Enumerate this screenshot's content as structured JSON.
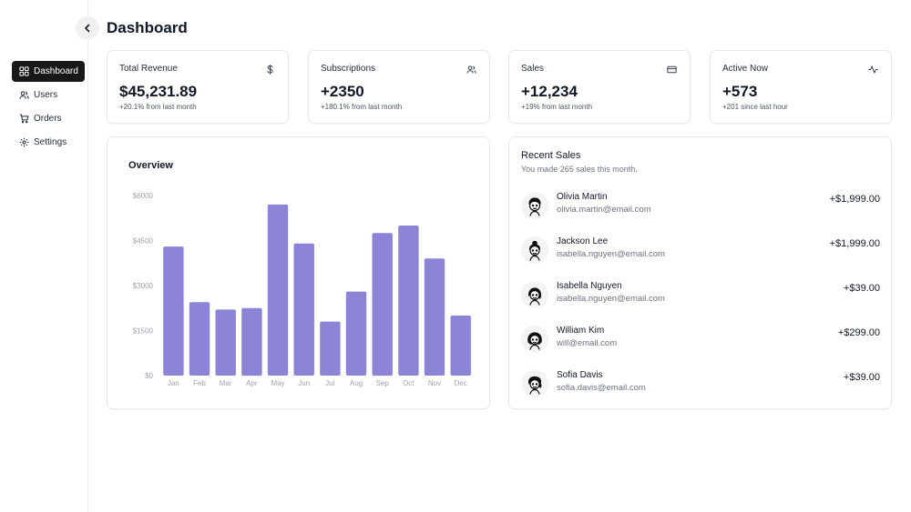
{
  "header": {
    "title": "Dashboard"
  },
  "sidebar": {
    "items": [
      {
        "label": "Dashboard",
        "icon": "dashboard-icon",
        "active": true
      },
      {
        "label": "Users",
        "icon": "users-icon",
        "active": false
      },
      {
        "label": "Orders",
        "icon": "cart-icon",
        "active": false
      },
      {
        "label": "Settings",
        "icon": "gear-icon",
        "active": false
      }
    ]
  },
  "stats": [
    {
      "label": "Total Revenue",
      "value": "$45,231.89",
      "delta": "+20.1% from last month",
      "icon": "dollar-icon"
    },
    {
      "label": "Subscriptions",
      "value": "+2350",
      "delta": "+180.1% from last month",
      "icon": "users-icon"
    },
    {
      "label": "Sales",
      "value": "+12,234",
      "delta": "+19% from last month",
      "icon": "credit-card-icon"
    },
    {
      "label": "Active Now",
      "value": "+573",
      "delta": "+201 since last hour",
      "icon": "activity-icon"
    }
  ],
  "overview": {
    "title": "Overview",
    "chart_data": {
      "type": "bar",
      "categories": [
        "Jan",
        "Feb",
        "Mar",
        "Apr",
        "May",
        "Jun",
        "Jul",
        "Aug",
        "Sep",
        "Oct",
        "Nov",
        "Dec"
      ],
      "values": [
        4300,
        2450,
        2200,
        2250,
        5700,
        4400,
        1800,
        2800,
        4750,
        5000,
        3900,
        2000
      ],
      "yticks": [
        "$0",
        "$1500",
        "$3000",
        "$4500",
        "$6000"
      ],
      "ylim": [
        0,
        6000
      ],
      "bar_color": "#8b84d7",
      "grid": false,
      "title": "",
      "xlabel": "",
      "ylabel": ""
    }
  },
  "recent_sales": {
    "title": "Recent Sales",
    "subtitle": "You made 265 sales this month.",
    "items": [
      {
        "name": "Olivia Martin",
        "email": "olivia.martin@email.com",
        "amount": "+$1,999.00"
      },
      {
        "name": "Jackson Lee",
        "email": "isabella.nguyen@email.com",
        "amount": "+$1,999.00"
      },
      {
        "name": "Isabella Nguyen",
        "email": "isabella.nguyen@email.com",
        "amount": "+$39.00"
      },
      {
        "name": "William Kim",
        "email": "will@email.com",
        "amount": "+$299.00"
      },
      {
        "name": "Sofia Davis",
        "email": "sofia.davis@email.com",
        "amount": "+$39.00"
      }
    ]
  }
}
